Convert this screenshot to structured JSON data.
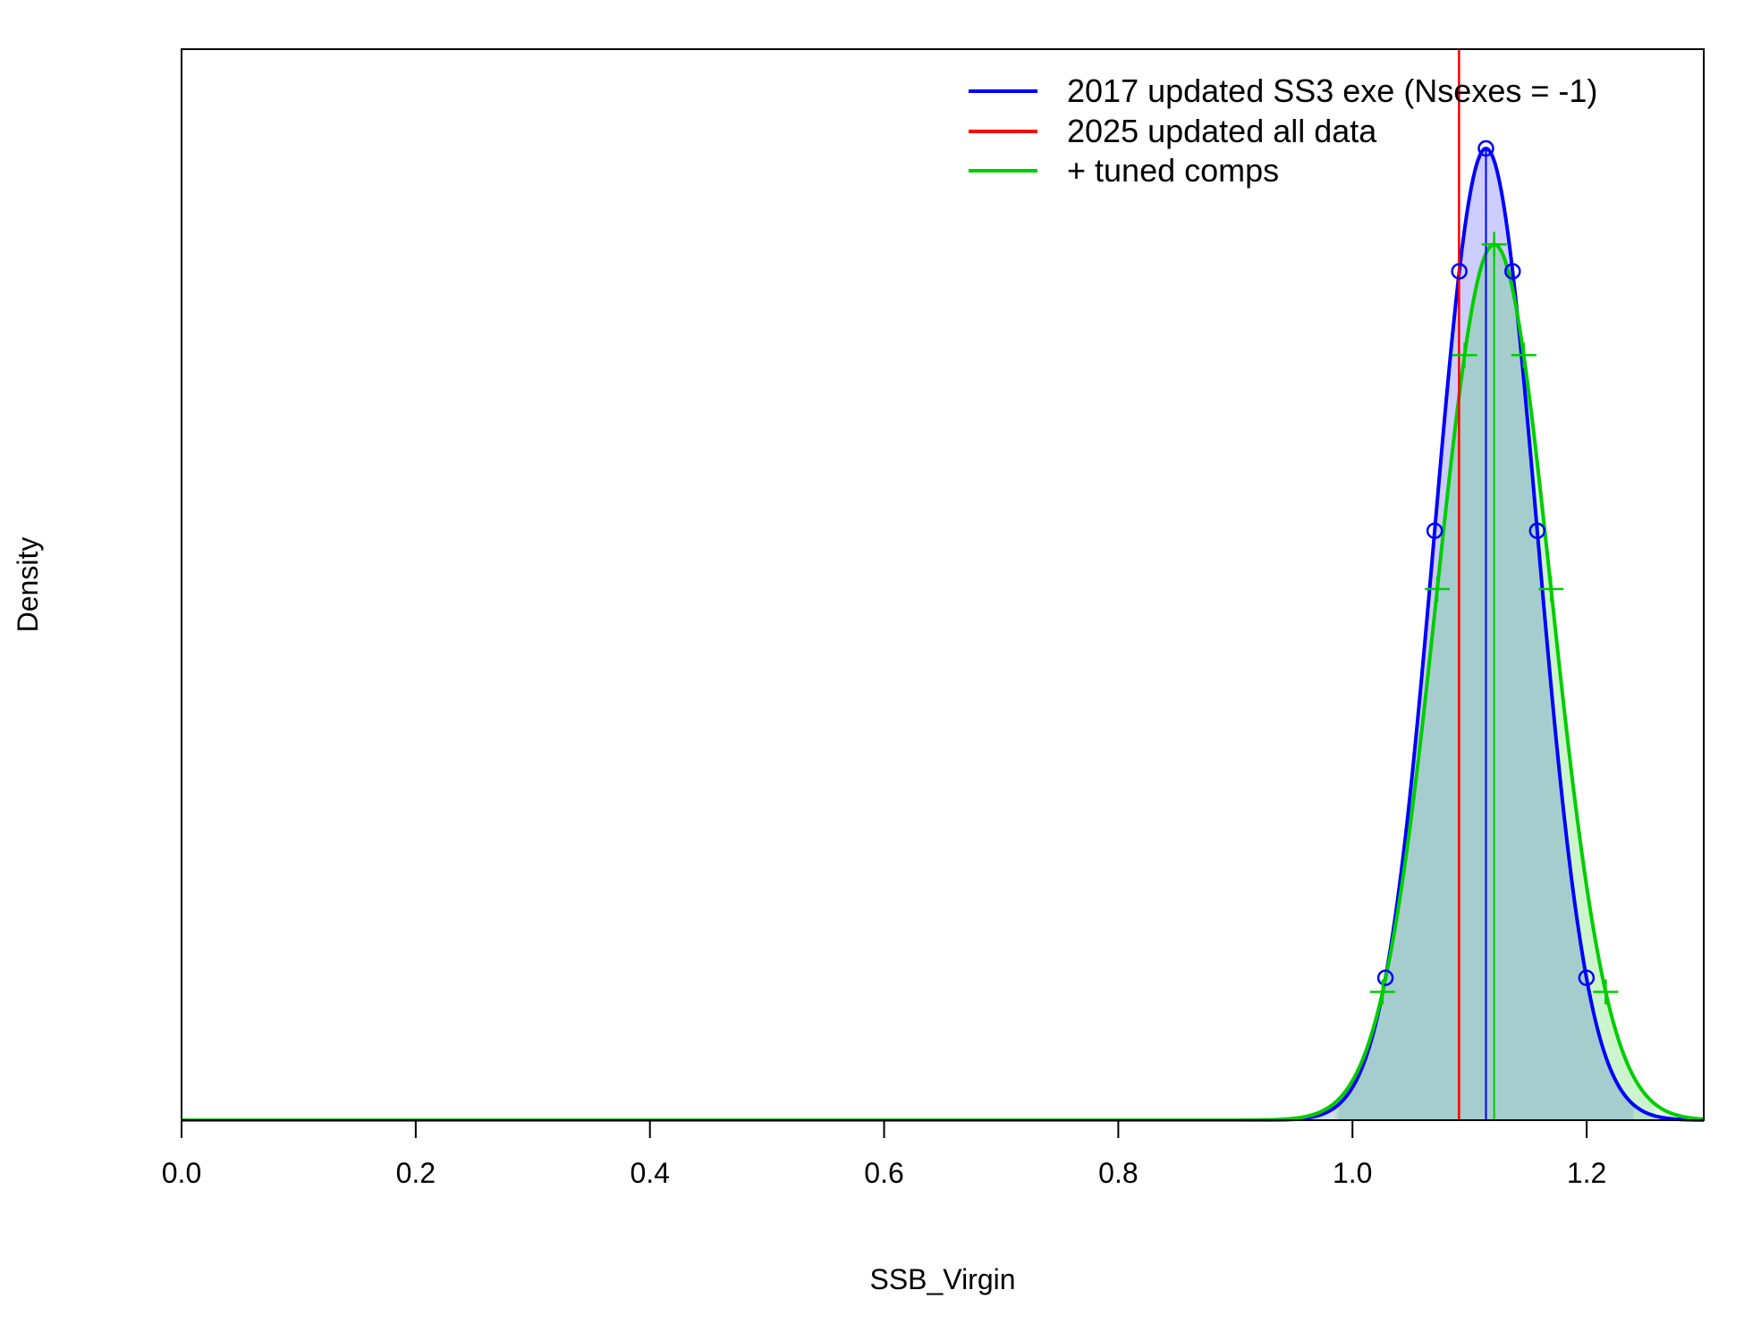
{
  "chart_data": {
    "type": "line",
    "title": "",
    "xlabel": "SSB_Virgin",
    "ylabel": "Density",
    "xlim": [
      0.0,
      1.3
    ],
    "xticks": [
      0.0,
      0.2,
      0.4,
      0.6,
      0.8,
      1.0,
      1.2
    ],
    "xtick_labels": [
      "0.0",
      "0.2",
      "0.4",
      "0.6",
      "0.8",
      "1.0",
      "1.2"
    ],
    "y_axis_ticks_shown": false,
    "grid": false,
    "legend_position": "top-right",
    "series": [
      {
        "name": "2017 updated SS3 exe (Nsexes = -1)",
        "color": "#0000ff",
        "kind": "normal-density",
        "mean": 1.114,
        "sd": 0.0438,
        "interval_95": [
          0.988,
          1.24
        ],
        "marker": "circle"
      },
      {
        "name": "2025 updated all data",
        "color": "#ff0000",
        "kind": "vertical-line",
        "value": 1.091
      },
      {
        "name": "+ tuned comps",
        "color": "#00cd00",
        "kind": "normal-density",
        "mean": 1.121,
        "sd": 0.0486,
        "interval_95": [
          0.985,
          1.258
        ],
        "marker": "plus"
      }
    ]
  }
}
